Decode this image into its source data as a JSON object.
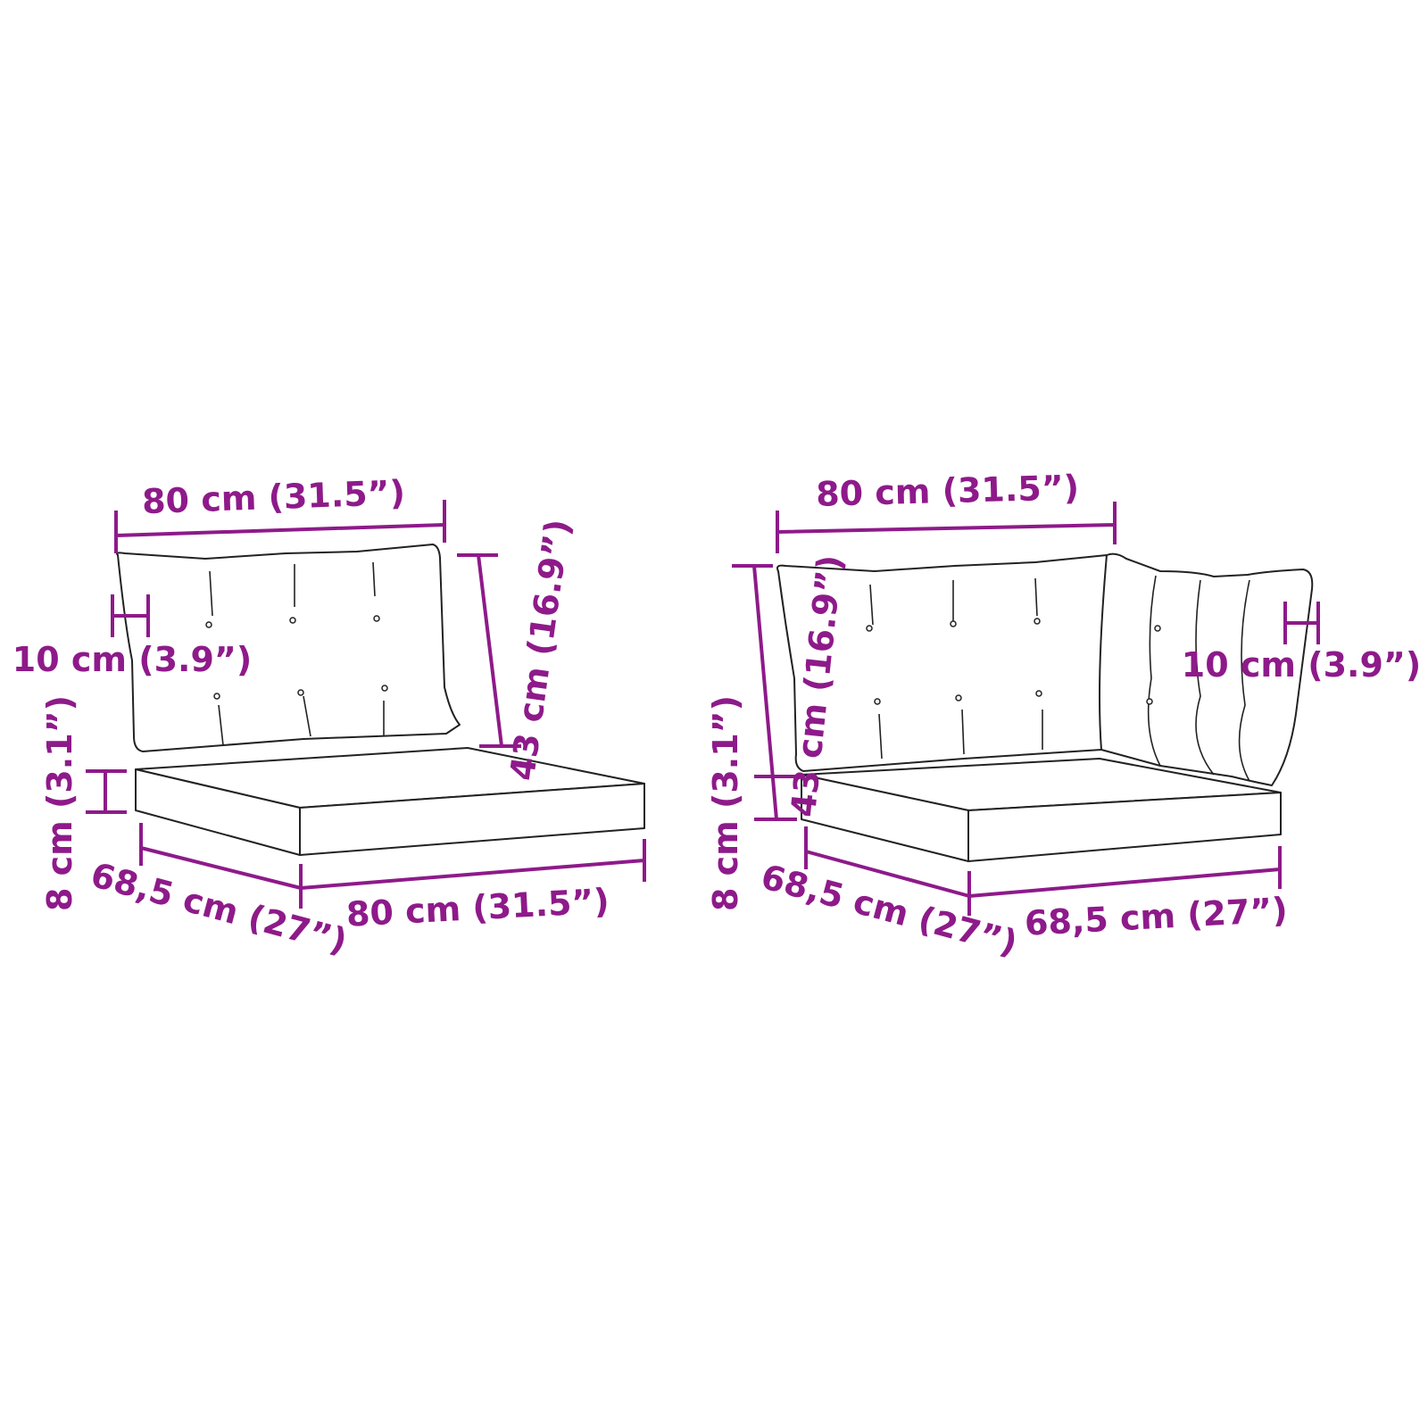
{
  "colors": {
    "dimension": "#8e1a8a",
    "outline": "#222222"
  },
  "left": {
    "top_width": "80 cm (31.5”)",
    "back_height": "43 cm (16.9”)",
    "back_thickness": "10 cm (3.9”)",
    "seat_thickness": "8 cm (3.1”)",
    "seat_depth": "68,5 cm (27”)",
    "seat_width": "80 cm (31.5”)"
  },
  "right": {
    "top_width": "80 cm (31.5”)",
    "back_height": "43 cm (16.9”)",
    "back_thickness": "10 cm (3.9”)",
    "seat_thickness": "8 cm (3.1”)",
    "seat_depth": "68,5 cm (27”)",
    "seat_width": "68,5 cm (27”)"
  }
}
